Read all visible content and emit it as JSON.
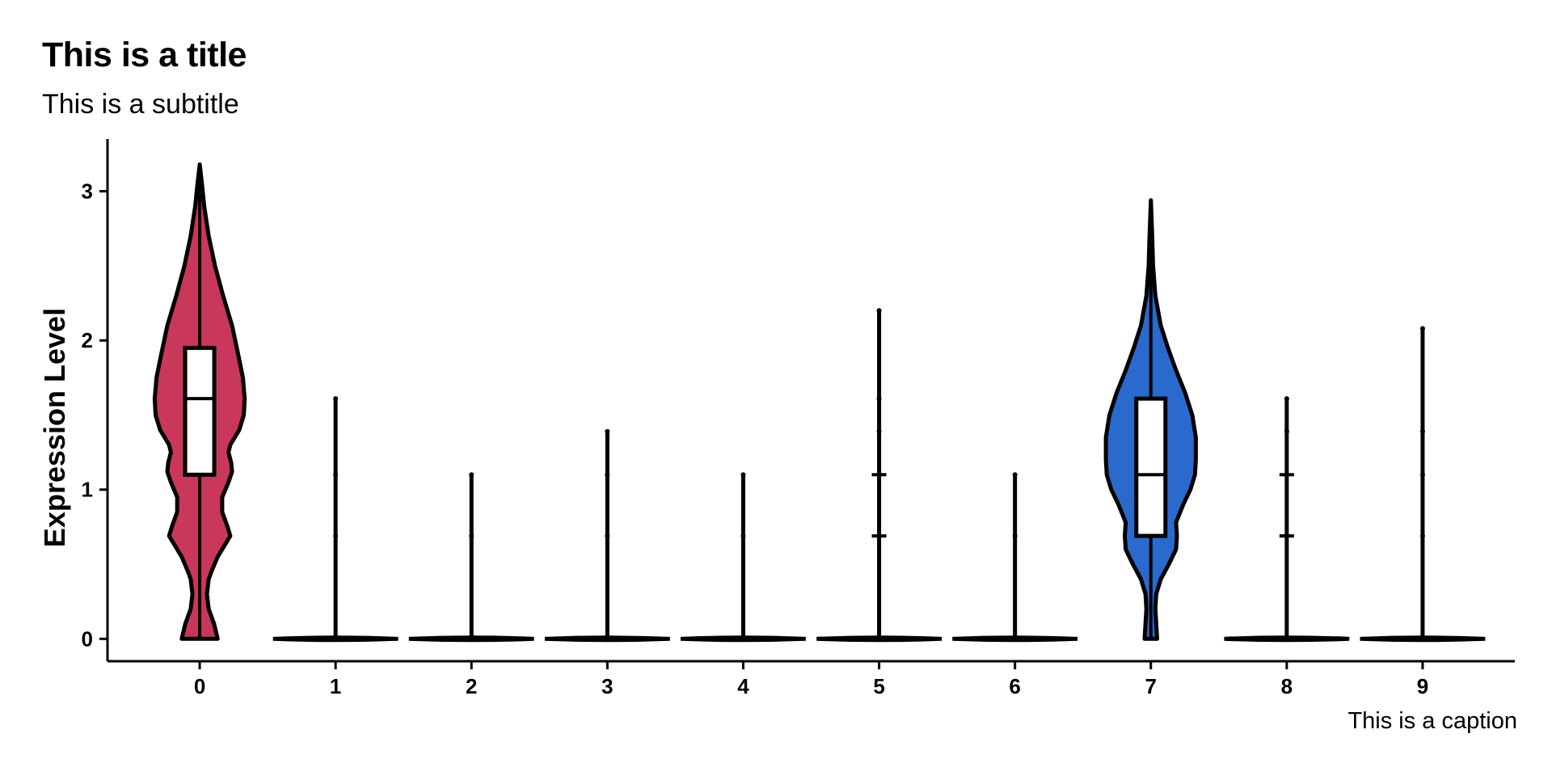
{
  "chart_data": {
    "type": "violin",
    "title": "This is a title",
    "subtitle": "This is a subtitle",
    "caption": "This is a caption",
    "xlabel": "",
    "ylabel": "Expression Level",
    "ylim": [
      -0.15,
      3.35
    ],
    "yticks": [
      0,
      1,
      2,
      3
    ],
    "categories": [
      "0",
      "1",
      "2",
      "3",
      "4",
      "5",
      "6",
      "7",
      "8",
      "9"
    ],
    "grid": false,
    "legend": "none",
    "groups": [
      {
        "category": "0",
        "fill": "#C9375A",
        "max": 3.18,
        "box": {
          "q1": 1.1,
          "median": 1.61,
          "q3": 1.95,
          "whisker_low": 0,
          "whisker_high": 3.18
        },
        "density": [
          [
            0,
            0.4
          ],
          [
            0.1,
            0.32
          ],
          [
            0.2,
            0.2
          ],
          [
            0.3,
            0.16
          ],
          [
            0.4,
            0.2
          ],
          [
            0.45,
            0.26
          ],
          [
            0.55,
            0.4
          ],
          [
            0.65,
            0.6
          ],
          [
            0.69,
            0.68
          ],
          [
            0.75,
            0.62
          ],
          [
            0.85,
            0.5
          ],
          [
            0.95,
            0.5
          ],
          [
            1.05,
            0.64
          ],
          [
            1.12,
            0.72
          ],
          [
            1.18,
            0.7
          ],
          [
            1.25,
            0.64
          ],
          [
            1.3,
            0.68
          ],
          [
            1.4,
            0.88
          ],
          [
            1.5,
            0.98
          ],
          [
            1.61,
            1.0
          ],
          [
            1.75,
            0.96
          ],
          [
            1.9,
            0.86
          ],
          [
            2.1,
            0.72
          ],
          [
            2.3,
            0.52
          ],
          [
            2.5,
            0.34
          ],
          [
            2.7,
            0.2
          ],
          [
            2.9,
            0.1
          ],
          [
            3.05,
            0.05
          ],
          [
            3.18,
            0.0
          ]
        ],
        "points": []
      },
      {
        "category": "1",
        "fill": "#ffffff",
        "max": 1.61,
        "base_only": true,
        "points": [
          0.69,
          1.1,
          1.61
        ]
      },
      {
        "category": "2",
        "fill": "#ffffff",
        "max": 1.1,
        "base_only": true,
        "points": [
          0.69,
          1.1
        ]
      },
      {
        "category": "3",
        "fill": "#ffffff",
        "max": 1.39,
        "base_only": true,
        "points": [
          0.69,
          1.1,
          1.39
        ]
      },
      {
        "category": "4",
        "fill": "#ffffff",
        "max": 1.1,
        "base_only": true,
        "points": [
          0.69,
          1.1
        ]
      },
      {
        "category": "5",
        "fill": "#ffffff",
        "max": 2.2,
        "base_only": true,
        "points": [
          0.69,
          1.1,
          1.39,
          1.61,
          2.2
        ],
        "bumps": [
          0.69,
          1.1
        ]
      },
      {
        "category": "6",
        "fill": "#ffffff",
        "max": 1.1,
        "base_only": true,
        "points": [
          0.69,
          1.1
        ]
      },
      {
        "category": "7",
        "fill": "#2A6ACC",
        "max": 2.94,
        "box": {
          "q1": 0.69,
          "median": 1.1,
          "q3": 1.61,
          "whisker_low": 0,
          "whisker_high": 2.94
        },
        "density": [
          [
            0,
            0.14
          ],
          [
            0.1,
            0.12
          ],
          [
            0.2,
            0.1
          ],
          [
            0.3,
            0.12
          ],
          [
            0.4,
            0.22
          ],
          [
            0.5,
            0.4
          ],
          [
            0.6,
            0.56
          ],
          [
            0.69,
            0.58
          ],
          [
            0.78,
            0.56
          ],
          [
            0.9,
            0.72
          ],
          [
            1.0,
            0.88
          ],
          [
            1.1,
            0.98
          ],
          [
            1.2,
            1.0
          ],
          [
            1.35,
            1.0
          ],
          [
            1.5,
            0.92
          ],
          [
            1.65,
            0.76
          ],
          [
            1.8,
            0.56
          ],
          [
            1.95,
            0.38
          ],
          [
            2.1,
            0.22
          ],
          [
            2.3,
            0.1
          ],
          [
            2.5,
            0.05
          ],
          [
            2.7,
            0.03
          ],
          [
            2.94,
            0.0
          ]
        ],
        "points": []
      },
      {
        "category": "8",
        "fill": "#ffffff",
        "max": 1.61,
        "base_only": true,
        "points": [
          0.69,
          1.1,
          1.39,
          1.61
        ],
        "bumps": [
          0.69,
          1.1
        ]
      },
      {
        "category": "9",
        "fill": "#ffffff",
        "max": 2.08,
        "base_only": true,
        "points": [
          0.69,
          1.1,
          1.39,
          2.08
        ]
      }
    ]
  }
}
